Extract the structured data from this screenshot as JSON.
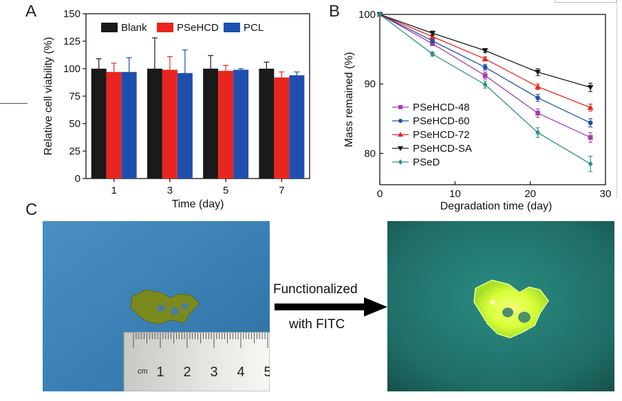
{
  "panels": {
    "a": "A",
    "b": "B",
    "c": "C"
  },
  "chart_data": [
    {
      "type": "bar",
      "xlabel": "Time (day)",
      "ylabel": "Relative cell viability (%)",
      "ylim": [
        0,
        150
      ],
      "yticks": [
        0,
        25,
        50,
        75,
        100,
        125,
        150
      ],
      "legend_position": "top",
      "categories": [
        "1",
        "3",
        "5",
        "7"
      ],
      "series": [
        {
          "name": "Blank",
          "color": "#1a1a1a",
          "values": [
            100,
            100,
            100,
            100
          ],
          "errors": [
            9,
            28,
            12,
            6
          ]
        },
        {
          "name": "PSeHCD",
          "color": "#e8261f",
          "values": [
            97,
            99,
            98,
            92
          ],
          "errors": [
            8,
            12,
            5,
            5
          ]
        },
        {
          "name": "PCL",
          "color": "#1f4fae",
          "values": [
            97,
            96,
            99,
            94
          ],
          "errors": [
            13,
            21,
            1,
            3
          ]
        }
      ]
    },
    {
      "type": "line",
      "xlabel": "Degradation time (day)",
      "ylabel": "Mass remained (%)",
      "xlim": [
        0,
        30
      ],
      "ylim": [
        75.5,
        100
      ],
      "xticks": [
        0,
        10,
        20,
        30
      ],
      "yticks": [
        80,
        90,
        100
      ],
      "legend_position": "bottom-left",
      "x": [
        0,
        7,
        14,
        21,
        28
      ],
      "series": [
        {
          "name": "PSeHCD-48",
          "color": "#a23fa8",
          "marker": "square",
          "values": [
            100,
            95.8,
            91.2,
            85.8,
            82.3
          ],
          "errors": [
            0,
            0.3,
            0.5,
            0.6,
            0.7
          ]
        },
        {
          "name": "PSeHCD-60",
          "color": "#1f4fae",
          "marker": "circle",
          "values": [
            100,
            96.2,
            92.4,
            88.0,
            84.4
          ],
          "errors": [
            0,
            0.3,
            0.4,
            0.5,
            0.6
          ]
        },
        {
          "name": "PSeHCD-72",
          "color": "#e8261f",
          "marker": "triangle-up",
          "values": [
            100,
            96.8,
            93.6,
            89.6,
            86.6
          ],
          "errors": [
            0,
            0.3,
            0.3,
            0.4,
            0.5
          ]
        },
        {
          "name": "PSeHCD-SA",
          "color": "#1a1a1a",
          "marker": "triangle-down",
          "values": [
            100,
            97.3,
            94.8,
            91.7,
            89.5
          ],
          "errors": [
            0,
            0.3,
            0.3,
            0.5,
            0.6
          ]
        },
        {
          "name": "PSeD",
          "color": "#2e8f86",
          "marker": "diamond",
          "values": [
            100,
            94.3,
            89.9,
            83.0,
            78.5
          ],
          "errors": [
            0,
            0.3,
            0.5,
            0.7,
            1.1
          ]
        }
      ]
    }
  ],
  "panel_c": {
    "ruler_unit": "cm",
    "ruler_numbers": [
      "1",
      "2",
      "3",
      "4",
      "5"
    ],
    "arrow_line1": "Functionalized",
    "arrow_line2": "with FITC",
    "colors": {
      "left_background": "#3d83b8",
      "right_background": "#1f6a63",
      "sample_native": "#7b8a1f",
      "sample_fitc": "#d9ff3a"
    }
  }
}
